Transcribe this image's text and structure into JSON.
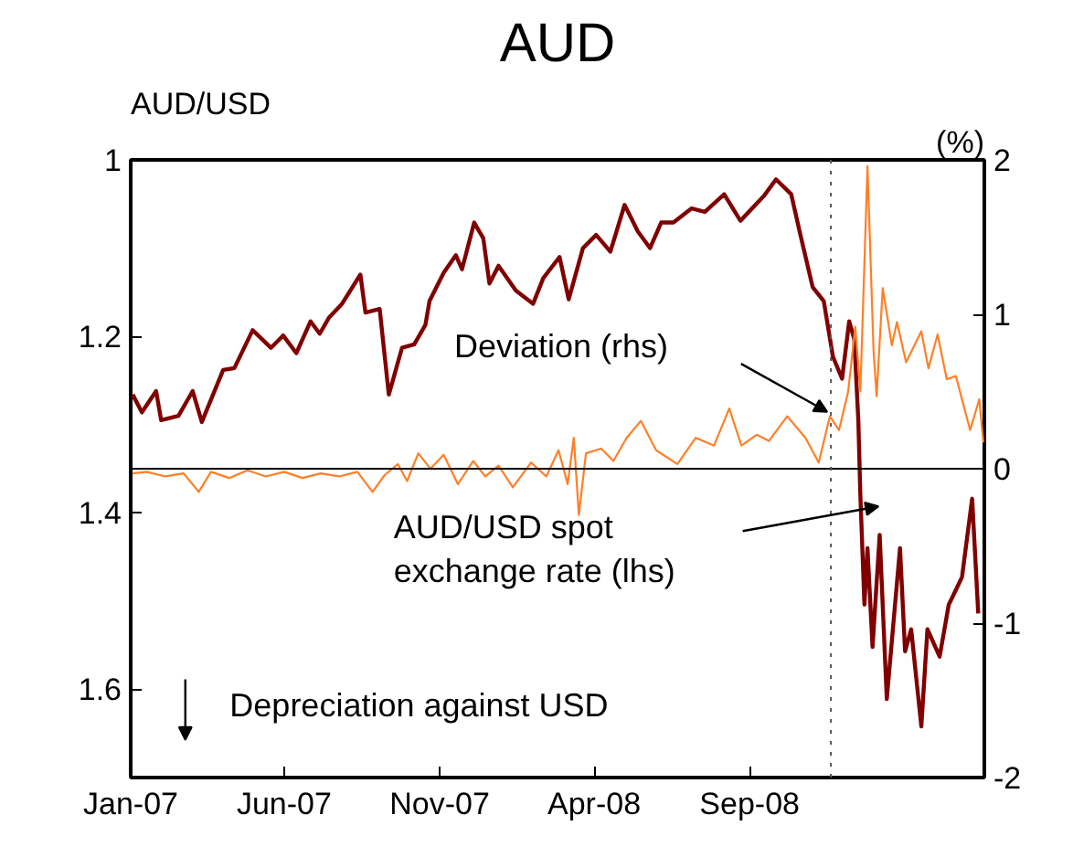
{
  "chart_data": {
    "type": "line",
    "title": "AUD",
    "ylabel": "AUD/USD",
    "y2label": "(%)",
    "xlim": [
      "2007-01-01",
      "2009-04-20"
    ],
    "xticks": [
      {
        "value": "2007-01-01",
        "label": "Jan-07"
      },
      {
        "value": "2007-06-01",
        "label": "Jun-07"
      },
      {
        "value": "2007-11-01",
        "label": "Nov-07"
      },
      {
        "value": "2008-04-01",
        "label": "Apr-08"
      },
      {
        "value": "2008-09-01",
        "label": "Sep-08"
      }
    ],
    "ylim": [
      1.7,
      1
    ],
    "yticks": [
      1,
      1.2,
      1.4,
      1.6
    ],
    "y2lim": [
      -2,
      2
    ],
    "y2ticks": [
      -2,
      -1,
      0,
      1,
      2
    ],
    "grid": false,
    "marker": "none",
    "line_style": "solid",
    "series": [
      {
        "color": "#800000",
        "x": [
          "2007-01-03",
          "2007-01-12",
          "2007-01-26",
          "2007-01-31",
          "2007-02-17",
          "2007-03-03",
          "2007-03-12",
          "2007-04-02",
          "2007-04-13",
          "2007-05-01",
          "2007-05-19",
          "2007-05-31",
          "2007-06-13",
          "2007-06-27",
          "2007-07-06",
          "2007-07-15",
          "2007-07-28",
          "2007-08-15",
          "2007-08-20",
          "2007-09-03",
          "2007-09-12",
          "2007-09-25",
          "2007-10-07",
          "2007-10-18",
          "2007-10-22",
          "2007-11-05",
          "2007-11-17",
          "2007-11-23",
          "2007-12-05",
          "2007-12-14",
          "2007-12-20",
          "2007-12-29",
          "2008-01-15",
          "2008-02-01",
          "2008-02-11",
          "2008-02-27",
          "2008-03-07",
          "2008-03-21",
          "2008-04-03",
          "2008-04-17",
          "2008-05-01",
          "2008-05-14",
          "2008-05-26",
          "2008-06-06",
          "2008-06-18",
          "2008-07-06",
          "2008-07-19",
          "2008-08-07",
          "2008-08-23",
          "2008-09-15",
          "2008-09-27",
          "2008-10-12",
          "2008-10-21",
          "2008-11-02",
          "2008-11-13",
          "2008-11-22",
          "2008-12-01",
          "2008-12-08",
          "2008-12-13",
          "2008-12-17",
          "2008-12-19",
          "2008-12-23",
          "2008-12-26",
          "2008-12-31",
          "2009-01-07",
          "2009-01-14",
          "2009-01-27",
          "2009-02-01",
          "2009-02-07",
          "2009-02-17",
          "2009-02-23",
          "2009-03-07",
          "2009-03-16",
          "2009-03-29",
          "2009-04-08",
          "2009-04-14"
        ],
        "values": [
          1.266,
          1.286,
          1.262,
          1.295,
          1.29,
          1.262,
          1.297,
          1.238,
          1.236,
          1.193,
          1.213,
          1.199,
          1.219,
          1.183,
          1.197,
          1.179,
          1.163,
          1.13,
          1.173,
          1.169,
          1.266,
          1.213,
          1.209,
          1.187,
          1.16,
          1.128,
          1.108,
          1.124,
          1.071,
          1.089,
          1.14,
          1.12,
          1.148,
          1.163,
          1.134,
          1.11,
          1.158,
          1.1,
          1.085,
          1.104,
          1.051,
          1.081,
          1.1,
          1.071,
          1.071,
          1.055,
          1.059,
          1.039,
          1.069,
          1.041,
          1.022,
          1.039,
          1.085,
          1.144,
          1.16,
          1.223,
          1.248,
          1.183,
          1.203,
          1.295,
          1.38,
          1.504,
          1.44,
          1.552,
          1.425,
          1.611,
          1.44,
          1.557,
          1.532,
          1.642,
          1.532,
          1.563,
          1.504,
          1.473,
          1.384,
          1.514
        ]
      },
      {
        "color": "#ff7f27",
        "axis": "y2",
        "x": [
          "2007-01-03",
          "2007-01-17",
          "2007-02-04",
          "2007-02-22",
          "2007-03-09",
          "2007-03-21",
          "2007-04-08",
          "2007-04-26",
          "2007-05-14",
          "2007-06-01",
          "2007-06-19",
          "2007-07-07",
          "2007-07-25",
          "2007-08-12",
          "2007-08-27",
          "2007-09-08",
          "2007-09-21",
          "2007-09-30",
          "2007-10-11",
          "2007-10-23",
          "2007-11-05",
          "2007-11-19",
          "2007-12-04",
          "2007-12-16",
          "2007-12-29",
          "2008-01-12",
          "2008-01-30",
          "2008-02-14",
          "2008-02-26",
          "2008-03-06",
          "2008-03-12",
          "2008-03-17",
          "2008-03-24",
          "2008-04-08",
          "2008-04-20",
          "2008-05-03",
          "2008-05-17",
          "2008-06-01",
          "2008-06-22",
          "2008-07-10",
          "2008-07-28",
          "2008-08-12",
          "2008-08-24",
          "2008-09-08",
          "2008-09-20",
          "2008-10-08",
          "2008-10-26",
          "2008-11-08",
          "2008-11-19",
          "2008-11-28",
          "2008-12-07",
          "2008-12-14",
          "2008-12-19",
          "2008-12-26",
          "2009-01-01",
          "2009-01-04",
          "2009-01-10",
          "2009-01-19",
          "2009-01-24",
          "2009-02-02",
          "2009-02-17",
          "2009-02-24",
          "2009-03-05",
          "2009-03-14",
          "2009-03-23",
          "2009-04-06",
          "2009-04-15",
          "2009-04-19"
        ],
        "values": [
          -0.03,
          -0.02,
          -0.05,
          -0.03,
          -0.15,
          -0.02,
          -0.06,
          -0.01,
          -0.05,
          -0.02,
          -0.06,
          -0.03,
          -0.05,
          -0.02,
          -0.15,
          -0.04,
          0.03,
          -0.08,
          0.1,
          0.0,
          0.09,
          -0.1,
          0.05,
          -0.05,
          0.02,
          -0.12,
          0.04,
          -0.05,
          0.12,
          -0.1,
          0.2,
          -0.3,
          0.1,
          0.13,
          0.05,
          0.2,
          0.31,
          0.12,
          0.03,
          0.2,
          0.15,
          0.39,
          0.15,
          0.22,
          0.18,
          0.34,
          0.2,
          0.04,
          0.34,
          0.25,
          0.5,
          0.92,
          0.5,
          1.96,
          0.76,
          0.47,
          1.17,
          0.8,
          0.95,
          0.69,
          0.89,
          0.65,
          0.87,
          0.58,
          0.6,
          0.25,
          0.45,
          0.17
        ]
      }
    ],
    "ref_lines": [
      {
        "axis": "y2",
        "value": 0,
        "color": "#000000",
        "line_style": "solid"
      },
      {
        "axis": "x",
        "value": "2008-11-20",
        "color": "#555555",
        "line_style": "dotted"
      }
    ],
    "annotations": [
      "Deviation (rhs)",
      "AUD/USD spot\nexchange rate (lhs)",
      "Depreciation against USD"
    ]
  }
}
